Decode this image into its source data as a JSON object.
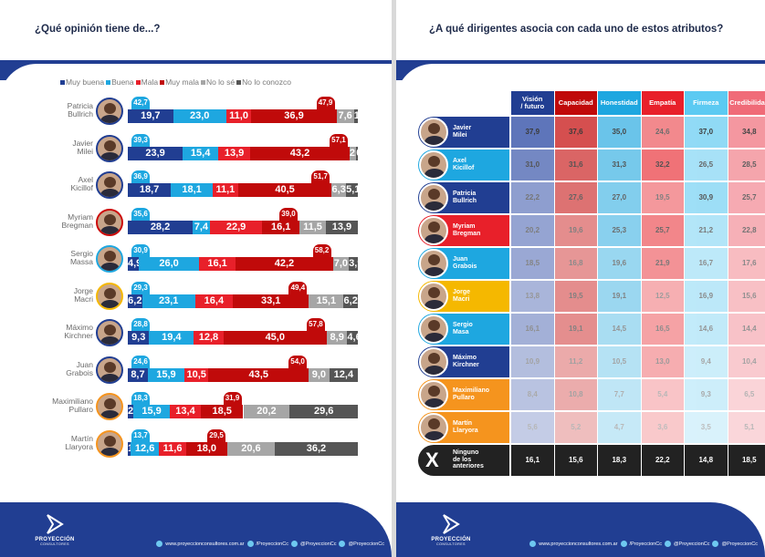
{
  "left": {
    "title": "¿Qué opinión tiene de...?",
    "chart_data": {
      "type": "bar",
      "stacked": true,
      "orientation": "horizontal",
      "title": "¿Qué opinión tiene de...?",
      "categories": [
        "Patricia\nBullrich",
        "Javier\nMilei",
        "Axel\nKicillof",
        "Myriam\nBregman",
        "Sergio\nMassa",
        "Jorge\nMacri",
        "Máximo\nKirchner",
        "Juan\nGrabois",
        "Maximiliano\nPullaro",
        "Martín\nLlaryora"
      ],
      "series": [
        {
          "name": "Muy buena",
          "color": "#213e92",
          "values": [
            19.7,
            23.9,
            18.7,
            28.2,
            4.9,
            6.2,
            9.3,
            8.7,
            2.4,
            1.1
          ]
        },
        {
          "name": "Buena",
          "color": "#1ea7e0",
          "values": [
            23.0,
            15.4,
            18.1,
            7.4,
            26.0,
            23.1,
            19.4,
            15.9,
            15.9,
            12.6
          ]
        },
        {
          "name": "Mala",
          "color": "#e8202a",
          "values": [
            11.0,
            13.9,
            11.1,
            22.9,
            16.1,
            16.4,
            12.8,
            10.5,
            13.4,
            11.6
          ]
        },
        {
          "name": "Muy mala",
          "color": "#c00a0a",
          "values": [
            36.9,
            43.2,
            40.5,
            16.1,
            42.2,
            33.1,
            45.0,
            43.5,
            18.5,
            18.0
          ]
        },
        {
          "name": "No lo sé",
          "color": "#a6a6a6",
          "values": [
            7.6,
            2.9,
            6.3,
            11.5,
            7.0,
            15.1,
            8.9,
            9.0,
            20.2,
            20.6
          ]
        },
        {
          "name": "No lo conozco",
          "color": "#555555",
          "values": [
            1.7,
            0.7,
            5.1,
            13.9,
            3.9,
            6.2,
            4.6,
            12.4,
            29.6,
            36.2
          ]
        }
      ],
      "labels": [
        [
          "19,7",
          "23,0",
          "11,0",
          "36,9",
          "7,6",
          "1,7"
        ],
        [
          "23,9",
          "15,4",
          "13,9",
          "43,2",
          "2,9",
          "0,7"
        ],
        [
          "18,7",
          "18,1",
          "11,1",
          "40,5",
          "6,3",
          "5,1"
        ],
        [
          "28,2",
          "7,4",
          "22,9",
          "16,1",
          "11,5",
          "13,9"
        ],
        [
          "4,9",
          "26,0",
          "16,1",
          "42,2",
          "7,0",
          "3,9"
        ],
        [
          "6,2",
          "23,1",
          "16,4",
          "33,1",
          "15,1",
          "6,2"
        ],
        [
          "9,3",
          "19,4",
          "12,8",
          "45,0",
          "8,9",
          "4,6"
        ],
        [
          "8,7",
          "15,9",
          "10,5",
          "43,5",
          "9,0",
          "12,4"
        ],
        [
          "2,4",
          "15,9",
          "13,4",
          "18,5",
          "20,2",
          "29,6"
        ],
        [
          "1,1",
          "12,6",
          "11,6",
          "18,0",
          "20,6",
          "36,2"
        ]
      ],
      "positive_totals": [
        "42,7",
        "39,3",
        "36,9",
        "35,6",
        "30,9",
        "29,3",
        "28,8",
        "24,6",
        "18,3",
        "13,7"
      ],
      "negative_totals": [
        "47,9",
        "57,1",
        "51,7",
        "39,0",
        "58,2",
        "49,4",
        "57,8",
        "54,0",
        "31,9",
        "29,5"
      ],
      "avatar_colors": [
        "#213e92",
        "#213e92",
        "#213e92",
        "#cc0a0a",
        "#1ea7e0",
        "#f5b800",
        "#213e92",
        "#213e92",
        "#f5941e",
        "#f5941e"
      ],
      "xlim": [
        0,
        100
      ]
    },
    "footer": {
      "logo_name": "PROYECCIÓN",
      "logo_sub": "CONSULTORES",
      "website": "www.proyeccionconsultores.com.ar",
      "facebook": "/ProyeccionCc",
      "twitter": "@ProyeccionCc",
      "instagram": "@ProyeccionCc"
    }
  },
  "right": {
    "title": "¿A qué dirigentes asocia con cada uno de estos atributos?",
    "chart_data": {
      "type": "heatmap",
      "title": "¿A qué dirigentes asocia con cada uno de estos atributos?",
      "columns": [
        "Visión\n/ futuro",
        "Capacidad",
        "Honestidad",
        "Empatía",
        "Firmeza",
        "Credibilidad"
      ],
      "column_colors": [
        "#213e92",
        "#c00a0a",
        "#1ea7e0",
        "#e8202a",
        "#5ccaf2",
        "#f06b78"
      ],
      "column_tints": [
        "#5870b8",
        "#d44848",
        "#5cbfe8",
        "#ee5a60",
        "#8ad8f5",
        "#f38c96"
      ],
      "rows": [
        "Javier\nMilei",
        "Axel\nKicillof",
        "Patricia\nBullrich",
        "Myriam\nBregman",
        "Juan\nGrabois",
        "Jorge\nMacri",
        "Sergio\nMasa",
        "Máximo\nKirchner",
        "Maximiliano\nPullaro",
        "Martín\nLlaryora",
        "Ninguno\nde los\nanteriores"
      ],
      "row_colors": [
        "#213e92",
        "#1ea7e0",
        "#213e92",
        "#e8202a",
        "#1ea7e0",
        "#f5b800",
        "#1ea7e0",
        "#213e92",
        "#f5941e",
        "#f5941e",
        "#222222"
      ],
      "values": [
        [
          37.9,
          37.6,
          35.0,
          24.6,
          37.0,
          34.8
        ],
        [
          31.0,
          31.6,
          31.3,
          32.2,
          26.5,
          28.5
        ],
        [
          22.2,
          27.6,
          27.0,
          19.5,
          30.9,
          25.7
        ],
        [
          20.2,
          19.6,
          25.3,
          25.7,
          21.2,
          22.8
        ],
        [
          18.5,
          16.8,
          19.6,
          21.9,
          16.7,
          17.6
        ],
        [
          13.8,
          19.5,
          19.1,
          12.5,
          16.9,
          15.6
        ],
        [
          16.1,
          19.1,
          14.5,
          16.5,
          14.6,
          14.4
        ],
        [
          10.9,
          11.2,
          10.5,
          13.0,
          9.4,
          10.4
        ],
        [
          8.4,
          10.8,
          7.7,
          5.4,
          9.3,
          6.5
        ],
        [
          5.6,
          5.2,
          4.7,
          3.6,
          3.5,
          5.1
        ],
        [
          16.1,
          15.6,
          18.3,
          22.2,
          14.8,
          18.5
        ]
      ],
      "labels": [
        [
          "37,9",
          "37,6",
          "35,0",
          "24,6",
          "37,0",
          "34,8"
        ],
        [
          "31,0",
          "31,6",
          "31,3",
          "32,2",
          "26,5",
          "28,5"
        ],
        [
          "22,2",
          "27,6",
          "27,0",
          "19,5",
          "30,9",
          "25,7"
        ],
        [
          "20,2",
          "19,6",
          "25,3",
          "25,7",
          "21,2",
          "22,8"
        ],
        [
          "18,5",
          "16,8",
          "19,6",
          "21,9",
          "16,7",
          "17,6"
        ],
        [
          "13,8",
          "19,5",
          "19,1",
          "12,5",
          "16,9",
          "15,6"
        ],
        [
          "16,1",
          "19,1",
          "14,5",
          "16,5",
          "14,6",
          "14,4"
        ],
        [
          "10,9",
          "11,2",
          "10,5",
          "13,0",
          "9,4",
          "10,4"
        ],
        [
          "8,4",
          "10,8",
          "7,7",
          "5,4",
          "9,3",
          "6,5"
        ],
        [
          "5,6",
          "5,2",
          "4,7",
          "3,6",
          "3,5",
          "5,1"
        ],
        [
          "16,1",
          "15,6",
          "18,3",
          "22,2",
          "14,8",
          "18,5"
        ]
      ],
      "none_icon": "X"
    },
    "footer": {
      "logo_name": "PROYECCIÓN",
      "logo_sub": "CONSULTORES",
      "website": "www.proyeccionconsultores.com.ar",
      "facebook": "/ProyeccionCc",
      "twitter": "@ProyeccionCc",
      "instagram": "@ProyeccionCc"
    }
  }
}
